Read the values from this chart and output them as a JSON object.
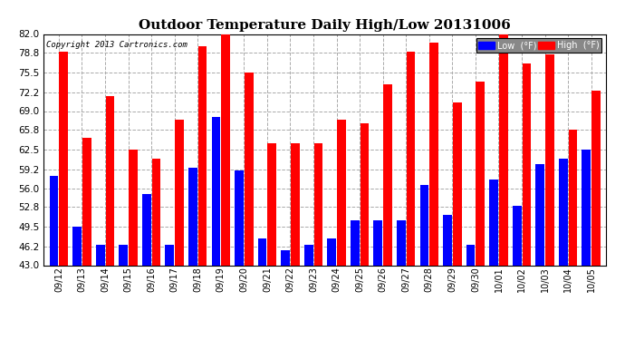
{
  "title": "Outdoor Temperature Daily High/Low 20131006",
  "copyright_text": "Copyright 2013 Cartronics.com",
  "dates": [
    "09/12",
    "09/13",
    "09/14",
    "09/15",
    "09/16",
    "09/17",
    "09/18",
    "09/19",
    "09/20",
    "09/21",
    "09/22",
    "09/23",
    "09/24",
    "09/25",
    "09/26",
    "09/27",
    "09/28",
    "09/29",
    "09/30",
    "10/01",
    "10/02",
    "10/03",
    "10/04",
    "10/05"
  ],
  "high": [
    79.0,
    64.5,
    71.5,
    62.5,
    61.0,
    67.5,
    80.0,
    82.5,
    75.5,
    63.5,
    63.5,
    63.5,
    67.5,
    67.0,
    73.5,
    79.0,
    80.5,
    70.5,
    74.0,
    82.0,
    77.0,
    78.5,
    65.8,
    72.5
  ],
  "low": [
    58.0,
    49.5,
    46.5,
    46.5,
    55.0,
    46.5,
    59.5,
    68.0,
    59.0,
    47.5,
    45.5,
    46.5,
    47.5,
    50.5,
    50.5,
    50.5,
    56.5,
    51.5,
    46.5,
    57.5,
    53.0,
    60.0,
    61.0,
    62.5
  ],
  "high_color": "#ff0000",
  "low_color": "#0000ff",
  "bg_color": "#ffffff",
  "plot_bg_color": "#ffffff",
  "grid_color": "#aaaaaa",
  "title_fontsize": 11,
  "legend_low_label": "Low  (°F)",
  "legend_high_label": "High  (°F)",
  "ylim_min": 43.0,
  "ylim_max": 82.0,
  "yticks": [
    43.0,
    46.2,
    49.5,
    52.8,
    56.0,
    59.2,
    62.5,
    65.8,
    69.0,
    72.2,
    75.5,
    78.8,
    82.0
  ]
}
